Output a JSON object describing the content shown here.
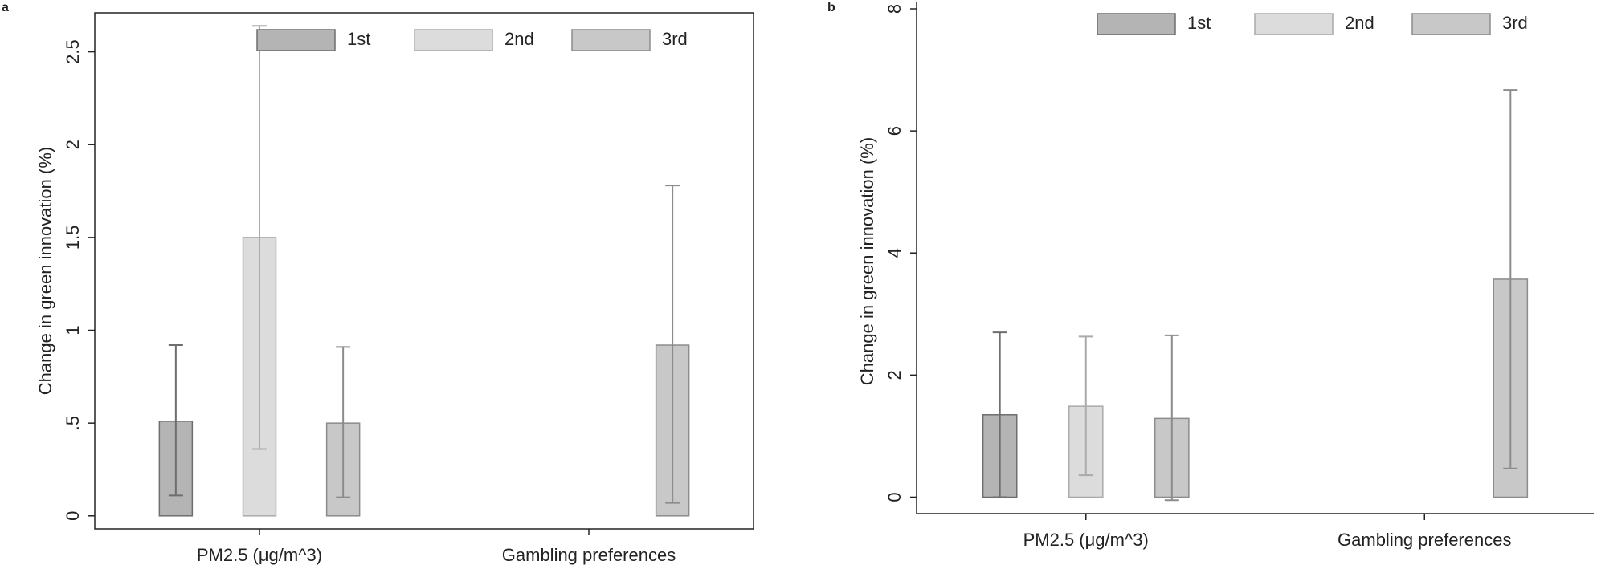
{
  "chart_data": [
    {
      "type": "bar",
      "panel": "a",
      "ylabel": "Change in green innovation (%)",
      "categories": [
        "PM2.5 (μg/m^3)",
        "Gambling preferences"
      ],
      "series": [
        {
          "name": "1st",
          "color": "#b4b4b4",
          "values": [
            0.51,
            null
          ],
          "low": [
            0.11,
            null
          ],
          "high": [
            0.92,
            null
          ]
        },
        {
          "name": "2nd",
          "color": "#dcdcdc",
          "values": [
            1.5,
            null
          ],
          "low": [
            0.36,
            null
          ],
          "high": [
            2.64,
            null
          ]
        },
        {
          "name": "3rd",
          "color": "#c8c8c8",
          "values": [
            0.5,
            0.92
          ],
          "low": [
            0.1,
            0.07
          ],
          "high": [
            0.91,
            1.78
          ]
        }
      ],
      "ylim": [
        -0.07,
        2.71
      ],
      "yticks": [
        0,
        {
          "value": 0.5,
          "label": ".5"
        },
        1,
        1.5,
        2,
        2.5
      ]
    },
    {
      "type": "bar",
      "panel": "b",
      "ylabel": "Change in green innovation (%)",
      "categories": [
        "PM2.5 (μg/m^3)",
        "Gambling preferences"
      ],
      "series": [
        {
          "name": "1st",
          "color": "#b4b4b4",
          "values": [
            1.35,
            null
          ],
          "low": [
            0,
            null
          ],
          "high": [
            2.7,
            null
          ]
        },
        {
          "name": "2nd",
          "color": "#dcdcdc",
          "values": [
            1.49,
            null
          ],
          "low": [
            0.36,
            null
          ],
          "high": [
            2.63,
            null
          ]
        },
        {
          "name": "3rd",
          "color": "#c8c8c8",
          "values": [
            1.29,
            3.57
          ],
          "low": [
            -0.05,
            0.47
          ],
          "high": [
            2.65,
            6.67
          ]
        }
      ],
      "ylim": [
        -0.27,
        8
      ],
      "yticks": [
        0,
        2,
        4,
        6,
        8
      ]
    }
  ]
}
